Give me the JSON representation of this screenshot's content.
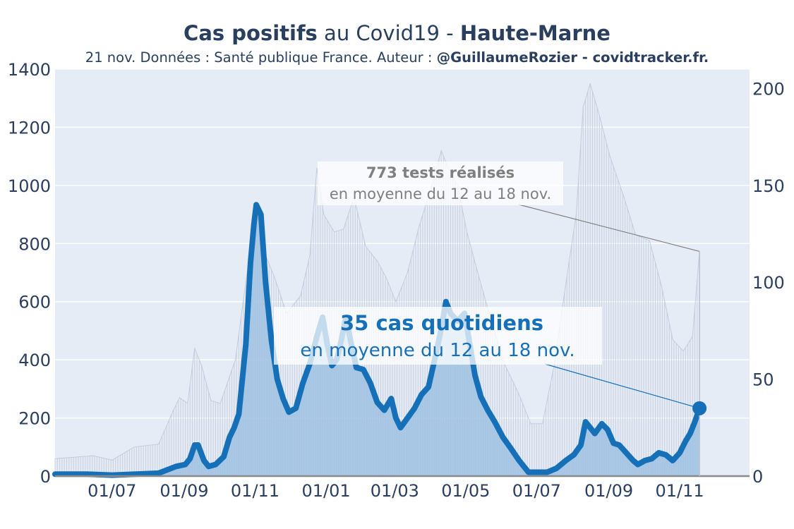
{
  "title": {
    "part1": "Cas positifs",
    "part2": " au Covid19 - ",
    "part3": "Haute-Marne"
  },
  "subtitle": {
    "part1": "21 nov. Données : Santé publique France. Auteur : ",
    "part2": "@GuillaumeRozier - covidtracker.fr."
  },
  "colors": {
    "cases": "#1670b8",
    "cases_fill": "#9fc2e3",
    "tests": "#c8d0df",
    "background": "#e5ecf6",
    "text": "#2a3f5f",
    "grey": "#7f7f7f"
  },
  "chart_data": {
    "type": "line",
    "x_tick_labels": [
      "01/07",
      "01/09",
      "01/11",
      "01/01",
      "01/03",
      "01/05",
      "01/07",
      "01/09",
      "01/11"
    ],
    "x_ticks": [
      "2020-07-01",
      "2020-09-01",
      "2020-11-01",
      "2021-01-01",
      "2021-03-01",
      "2021-05-01",
      "2021-07-01",
      "2021-09-01",
      "2021-11-01"
    ],
    "xlim": [
      "2020-05-13",
      "2021-12-31"
    ],
    "y_left": {
      "ticks": [
        0,
        200,
        400,
        600,
        800,
        1000,
        1200,
        1400
      ],
      "lim": [
        0,
        1400
      ],
      "series": "tests"
    },
    "y_right": {
      "ticks": [
        0,
        50,
        100,
        150,
        200
      ],
      "lim": [
        0,
        210
      ],
      "series": "cases"
    },
    "grid": true,
    "series": [
      {
        "axis": "right",
        "points": [
          [
            "2020-05-13",
            1
          ],
          [
            "2020-06-10",
            1
          ],
          [
            "2020-07-01",
            0.5
          ],
          [
            "2020-08-10",
            1.5
          ],
          [
            "2020-08-25",
            5
          ],
          [
            "2020-09-02",
            6
          ],
          [
            "2020-09-06",
            9
          ],
          [
            "2020-09-10",
            16
          ],
          [
            "2020-09-13",
            16
          ],
          [
            "2020-09-18",
            8
          ],
          [
            "2020-09-22",
            5
          ],
          [
            "2020-09-28",
            6
          ],
          [
            "2020-10-05",
            10
          ],
          [
            "2020-10-10",
            20
          ],
          [
            "2020-10-14",
            25
          ],
          [
            "2020-10-18",
            32
          ],
          [
            "2020-10-24",
            68
          ],
          [
            "2020-10-28",
            110
          ],
          [
            "2020-10-31",
            130
          ],
          [
            "2020-11-02",
            140
          ],
          [
            "2020-11-06",
            135
          ],
          [
            "2020-11-10",
            100
          ],
          [
            "2020-11-15",
            70
          ],
          [
            "2020-11-20",
            50
          ],
          [
            "2020-11-25",
            40
          ],
          [
            "2020-11-30",
            33
          ],
          [
            "2020-12-06",
            35
          ],
          [
            "2020-12-12",
            48
          ],
          [
            "2020-12-18",
            58
          ],
          [
            "2020-12-24",
            72
          ],
          [
            "2020-12-29",
            82
          ],
          [
            "2021-01-02",
            68
          ],
          [
            "2021-01-06",
            57
          ],
          [
            "2021-01-10",
            60
          ],
          [
            "2021-01-14",
            70
          ],
          [
            "2021-01-18",
            82
          ],
          [
            "2021-01-22",
            70
          ],
          [
            "2021-01-27",
            56
          ],
          [
            "2021-02-02",
            55
          ],
          [
            "2021-02-08",
            48
          ],
          [
            "2021-02-14",
            38
          ],
          [
            "2021-02-20",
            34
          ],
          [
            "2021-02-26",
            40
          ],
          [
            "2021-03-02",
            30
          ],
          [
            "2021-03-06",
            25
          ],
          [
            "2021-03-12",
            30
          ],
          [
            "2021-03-18",
            35
          ],
          [
            "2021-03-24",
            42
          ],
          [
            "2021-03-30",
            46
          ],
          [
            "2021-04-05",
            62
          ],
          [
            "2021-04-10",
            76
          ],
          [
            "2021-04-14",
            90
          ],
          [
            "2021-04-18",
            84
          ],
          [
            "2021-04-24",
            80
          ],
          [
            "2021-04-30",
            84
          ],
          [
            "2021-05-04",
            70
          ],
          [
            "2021-05-09",
            52
          ],
          [
            "2021-05-14",
            41
          ],
          [
            "2021-05-20",
            34
          ],
          [
            "2021-05-26",
            28
          ],
          [
            "2021-06-02",
            20
          ],
          [
            "2021-06-08",
            15
          ],
          [
            "2021-06-16",
            8
          ],
          [
            "2021-06-24",
            2
          ],
          [
            "2021-07-01",
            2
          ],
          [
            "2021-07-10",
            2
          ],
          [
            "2021-07-18",
            4
          ],
          [
            "2021-07-26",
            8
          ],
          [
            "2021-08-02",
            11
          ],
          [
            "2021-08-08",
            16
          ],
          [
            "2021-08-12",
            28
          ],
          [
            "2021-08-16",
            25
          ],
          [
            "2021-08-20",
            22
          ],
          [
            "2021-08-26",
            27
          ],
          [
            "2021-08-31",
            24
          ],
          [
            "2021-09-05",
            17
          ],
          [
            "2021-09-10",
            16
          ],
          [
            "2021-09-16",
            12
          ],
          [
            "2021-09-22",
            8
          ],
          [
            "2021-09-26",
            6
          ],
          [
            "2021-10-02",
            8
          ],
          [
            "2021-10-08",
            9
          ],
          [
            "2021-10-14",
            12
          ],
          [
            "2021-10-20",
            11
          ],
          [
            "2021-10-26",
            8
          ],
          [
            "2021-11-01",
            12
          ],
          [
            "2021-11-06",
            18
          ],
          [
            "2021-11-10",
            22
          ],
          [
            "2021-11-14",
            28
          ],
          [
            "2021-11-18",
            35
          ]
        ]
      },
      {
        "axis": "left",
        "points": [
          [
            "2020-05-13",
            60
          ],
          [
            "2020-06-15",
            70
          ],
          [
            "2020-07-01",
            55
          ],
          [
            "2020-07-20",
            100
          ],
          [
            "2020-08-10",
            110
          ],
          [
            "2020-08-22",
            220
          ],
          [
            "2020-08-28",
            270
          ],
          [
            "2020-09-04",
            250
          ],
          [
            "2020-09-10",
            440
          ],
          [
            "2020-09-16",
            380
          ],
          [
            "2020-09-24",
            260
          ],
          [
            "2020-10-02",
            250
          ],
          [
            "2020-10-15",
            400
          ],
          [
            "2020-10-25",
            700
          ],
          [
            "2020-11-02",
            880
          ],
          [
            "2020-11-10",
            760
          ],
          [
            "2020-11-18",
            680
          ],
          [
            "2020-11-28",
            560
          ],
          [
            "2020-12-10",
            620
          ],
          [
            "2020-12-18",
            760
          ],
          [
            "2020-12-24",
            1060
          ],
          [
            "2020-12-30",
            900
          ],
          [
            "2021-01-08",
            840
          ],
          [
            "2021-01-16",
            850
          ],
          [
            "2021-01-25",
            960
          ],
          [
            "2021-02-04",
            790
          ],
          [
            "2021-02-14",
            740
          ],
          [
            "2021-02-22",
            680
          ],
          [
            "2021-03-02",
            600
          ],
          [
            "2021-03-12",
            700
          ],
          [
            "2021-03-22",
            860
          ],
          [
            "2021-04-02",
            1000
          ],
          [
            "2021-04-10",
            1120
          ],
          [
            "2021-04-16",
            1060
          ],
          [
            "2021-04-24",
            1000
          ],
          [
            "2021-05-02",
            840
          ],
          [
            "2021-05-12",
            690
          ],
          [
            "2021-05-24",
            520
          ],
          [
            "2021-06-04",
            380
          ],
          [
            "2021-06-16",
            280
          ],
          [
            "2021-06-26",
            180
          ],
          [
            "2021-07-06",
            180
          ],
          [
            "2021-07-16",
            380
          ],
          [
            "2021-07-26",
            660
          ],
          [
            "2021-08-04",
            900
          ],
          [
            "2021-08-10",
            1270
          ],
          [
            "2021-08-16",
            1350
          ],
          [
            "2021-08-24",
            1240
          ],
          [
            "2021-09-02",
            1100
          ],
          [
            "2021-09-14",
            960
          ],
          [
            "2021-09-24",
            830
          ],
          [
            "2021-10-06",
            810
          ],
          [
            "2021-10-16",
            660
          ],
          [
            "2021-10-26",
            470
          ],
          [
            "2021-11-04",
            430
          ],
          [
            "2021-11-12",
            480
          ],
          [
            "2021-11-18",
            773
          ]
        ]
      }
    ],
    "annotations": [
      {
        "date": "2021-11-18",
        "axis": "left",
        "value": 773,
        "head": "773 tests réalisés",
        "sub": "en moyenne du 12 au 18 nov."
      },
      {
        "date": "2021-11-18",
        "axis": "right",
        "value": 35,
        "head": "35 cas quotidiens",
        "sub": "en moyenne du 12 au 18 nov."
      }
    ]
  }
}
